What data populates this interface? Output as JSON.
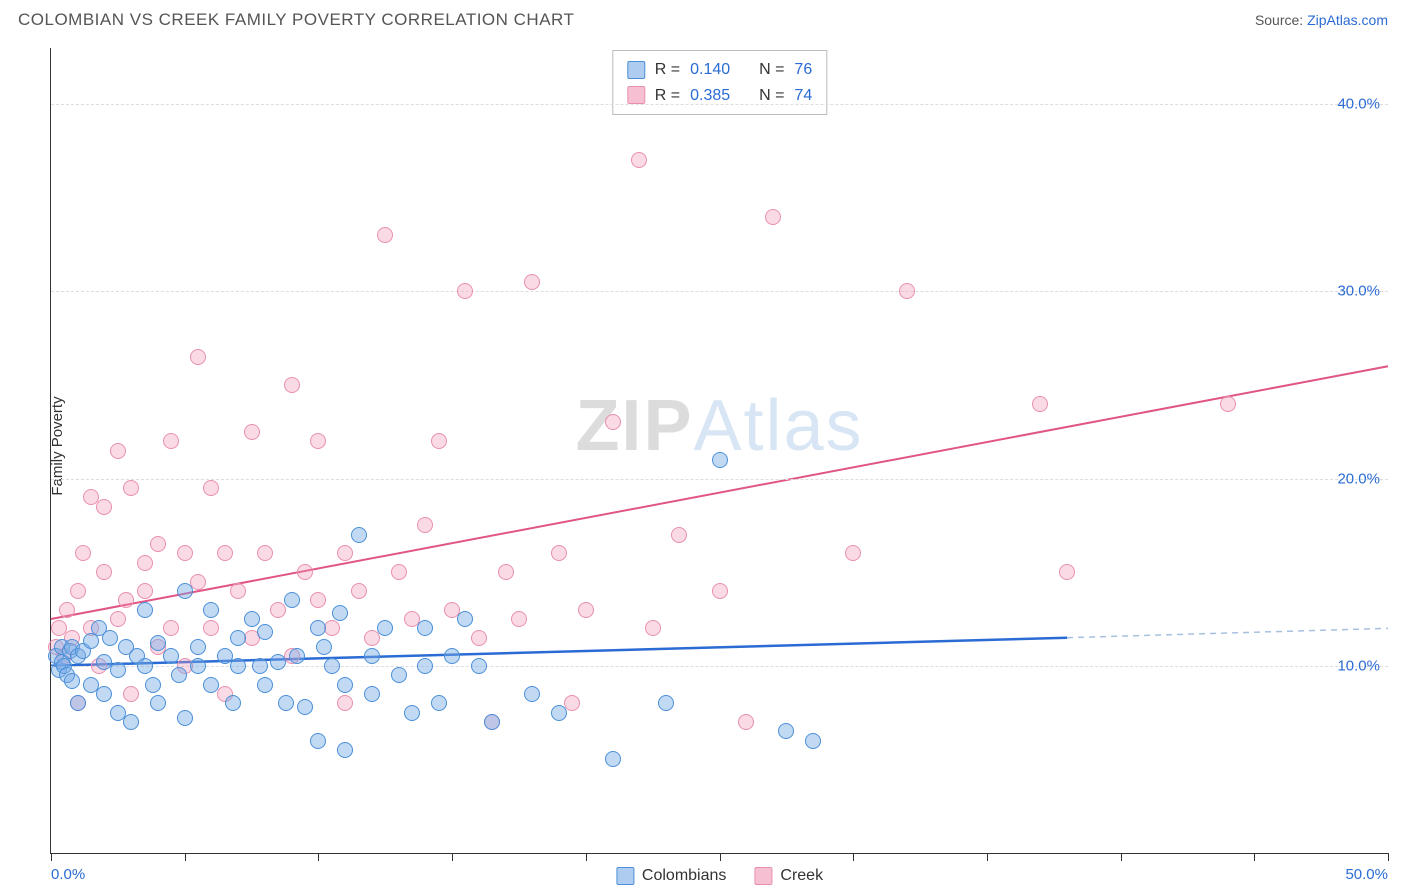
{
  "header": {
    "title": "COLOMBIAN VS CREEK FAMILY POVERTY CORRELATION CHART",
    "source_prefix": "Source: ",
    "source_link": "ZipAtlas.com"
  },
  "watermark": {
    "part1": "ZIP",
    "part2": "Atlas"
  },
  "axes": {
    "ylabel": "Family Poverty",
    "xlim": [
      0,
      50
    ],
    "ylim": [
      0,
      43
    ],
    "xticks": [
      0,
      5,
      10,
      15,
      20,
      25,
      30,
      35,
      40,
      45,
      50
    ],
    "xtick_labels": {
      "0": "0.0%",
      "50": "50.0%"
    },
    "yticks": [
      10,
      20,
      30,
      40
    ],
    "ytick_labels": {
      "10": "10.0%",
      "20": "20.0%",
      "30": "30.0%",
      "40": "40.0%"
    },
    "grid_color": "#dddddd",
    "axis_color": "#333333",
    "tick_label_color": "#2a6bd4"
  },
  "legend_top": {
    "rows": [
      {
        "swatch": "b",
        "r_label": "R =",
        "r": "0.140",
        "n_label": "N =",
        "n": "76"
      },
      {
        "swatch": "p",
        "r_label": "R =",
        "r": "0.385",
        "n_label": "N =",
        "n": "74"
      }
    ]
  },
  "legend_bottom": {
    "items": [
      {
        "swatch": "b",
        "label": "Colombians"
      },
      {
        "swatch": "p",
        "label": "Creek"
      }
    ]
  },
  "series": {
    "blue": {
      "color_fill": "rgba(120,170,230,0.45)",
      "color_stroke": "#4a8fd8",
      "marker_size": 16,
      "trend": {
        "x1": 0,
        "y1": 10.0,
        "x2": 38,
        "y2": 11.5,
        "dash_to_x": 50,
        "dash_to_y": 12.0,
        "stroke": "#2a6bd4",
        "dash_stroke": "#a8c0e0",
        "width": 2.5
      },
      "points": [
        [
          0.2,
          10.5
        ],
        [
          0.3,
          9.8
        ],
        [
          0.4,
          10.2
        ],
        [
          0.4,
          11.0
        ],
        [
          0.5,
          10.0
        ],
        [
          0.6,
          9.5
        ],
        [
          0.7,
          10.8
        ],
        [
          0.8,
          11.0
        ],
        [
          0.8,
          9.2
        ],
        [
          1.0,
          10.5
        ],
        [
          1.0,
          8.0
        ],
        [
          1.2,
          10.8
        ],
        [
          1.5,
          11.3
        ],
        [
          1.5,
          9.0
        ],
        [
          1.8,
          12.0
        ],
        [
          2.0,
          10.2
        ],
        [
          2.0,
          8.5
        ],
        [
          2.2,
          11.5
        ],
        [
          2.5,
          7.5
        ],
        [
          2.5,
          9.8
        ],
        [
          2.8,
          11.0
        ],
        [
          3.0,
          7.0
        ],
        [
          3.2,
          10.5
        ],
        [
          3.5,
          13.0
        ],
        [
          3.5,
          10.0
        ],
        [
          3.8,
          9.0
        ],
        [
          4.0,
          11.2
        ],
        [
          4.0,
          8.0
        ],
        [
          4.5,
          10.5
        ],
        [
          4.8,
          9.5
        ],
        [
          5.0,
          14.0
        ],
        [
          5.0,
          7.2
        ],
        [
          5.5,
          11.0
        ],
        [
          5.5,
          10.0
        ],
        [
          6.0,
          13.0
        ],
        [
          6.0,
          9.0
        ],
        [
          6.5,
          10.5
        ],
        [
          6.8,
          8.0
        ],
        [
          7.0,
          11.5
        ],
        [
          7.0,
          10.0
        ],
        [
          7.5,
          12.5
        ],
        [
          7.8,
          10.0
        ],
        [
          8.0,
          9.0
        ],
        [
          8.0,
          11.8
        ],
        [
          8.5,
          10.2
        ],
        [
          8.8,
          8.0
        ],
        [
          9.0,
          13.5
        ],
        [
          9.2,
          10.5
        ],
        [
          9.5,
          7.8
        ],
        [
          10.0,
          12.0
        ],
        [
          10.0,
          6.0
        ],
        [
          10.2,
          11.0
        ],
        [
          10.5,
          10.0
        ],
        [
          10.8,
          12.8
        ],
        [
          11.0,
          9.0
        ],
        [
          11.0,
          5.5
        ],
        [
          11.5,
          17.0
        ],
        [
          12.0,
          10.5
        ],
        [
          12.0,
          8.5
        ],
        [
          12.5,
          12.0
        ],
        [
          13.0,
          9.5
        ],
        [
          13.5,
          7.5
        ],
        [
          14.0,
          12.0
        ],
        [
          14.0,
          10.0
        ],
        [
          14.5,
          8.0
        ],
        [
          15.0,
          10.5
        ],
        [
          15.5,
          12.5
        ],
        [
          16.0,
          10.0
        ],
        [
          16.5,
          7.0
        ],
        [
          18.0,
          8.5
        ],
        [
          19.0,
          7.5
        ],
        [
          21.0,
          5.0
        ],
        [
          23.0,
          8.0
        ],
        [
          25.0,
          21.0
        ],
        [
          27.5,
          6.5
        ],
        [
          28.5,
          6.0
        ]
      ]
    },
    "pink": {
      "color_fill": "rgba(240,150,180,0.35)",
      "color_stroke": "#e88fb0",
      "marker_size": 16,
      "trend": {
        "x1": 0,
        "y1": 12.5,
        "x2": 50,
        "y2": 26.0,
        "stroke": "#e05585",
        "width": 2
      },
      "points": [
        [
          0.2,
          11.0
        ],
        [
          0.3,
          12.0
        ],
        [
          0.5,
          10.5
        ],
        [
          0.6,
          13.0
        ],
        [
          0.8,
          11.5
        ],
        [
          1.0,
          14.0
        ],
        [
          1.0,
          8.0
        ],
        [
          1.2,
          16.0
        ],
        [
          1.5,
          12.0
        ],
        [
          1.5,
          19.0
        ],
        [
          1.8,
          10.0
        ],
        [
          2.0,
          15.0
        ],
        [
          2.0,
          18.5
        ],
        [
          2.5,
          12.5
        ],
        [
          2.5,
          21.5
        ],
        [
          2.8,
          13.5
        ],
        [
          3.0,
          8.5
        ],
        [
          3.0,
          19.5
        ],
        [
          3.5,
          15.5
        ],
        [
          3.5,
          14.0
        ],
        [
          4.0,
          16.5
        ],
        [
          4.0,
          11.0
        ],
        [
          4.5,
          12.0
        ],
        [
          4.5,
          22.0
        ],
        [
          5.0,
          16.0
        ],
        [
          5.0,
          10.0
        ],
        [
          5.5,
          26.5
        ],
        [
          5.5,
          14.5
        ],
        [
          6.0,
          12.0
        ],
        [
          6.0,
          19.5
        ],
        [
          6.5,
          16.0
        ],
        [
          6.5,
          8.5
        ],
        [
          7.0,
          14.0
        ],
        [
          7.5,
          22.5
        ],
        [
          7.5,
          11.5
        ],
        [
          8.0,
          16.0
        ],
        [
          8.5,
          13.0
        ],
        [
          9.0,
          25.0
        ],
        [
          9.0,
          10.5
        ],
        [
          9.5,
          15.0
        ],
        [
          10.0,
          22.0
        ],
        [
          10.0,
          13.5
        ],
        [
          10.5,
          12.0
        ],
        [
          11.0,
          16.0
        ],
        [
          11.0,
          8.0
        ],
        [
          11.5,
          14.0
        ],
        [
          12.0,
          11.5
        ],
        [
          12.5,
          33.0
        ],
        [
          13.0,
          15.0
        ],
        [
          13.5,
          12.5
        ],
        [
          14.0,
          17.5
        ],
        [
          14.5,
          22.0
        ],
        [
          15.0,
          13.0
        ],
        [
          15.5,
          30.0
        ],
        [
          16.0,
          11.5
        ],
        [
          16.5,
          7.0
        ],
        [
          17.0,
          15.0
        ],
        [
          17.5,
          12.5
        ],
        [
          18.0,
          30.5
        ],
        [
          19.0,
          16.0
        ],
        [
          19.5,
          8.0
        ],
        [
          20.0,
          13.0
        ],
        [
          21.0,
          23.0
        ],
        [
          22.0,
          37.0
        ],
        [
          22.5,
          12.0
        ],
        [
          23.5,
          17.0
        ],
        [
          25.0,
          14.0
        ],
        [
          26.0,
          7.0
        ],
        [
          27.0,
          34.0
        ],
        [
          30.0,
          16.0
        ],
        [
          32.0,
          30.0
        ],
        [
          37.0,
          24.0
        ],
        [
          38.0,
          15.0
        ],
        [
          44.0,
          24.0
        ]
      ]
    }
  }
}
